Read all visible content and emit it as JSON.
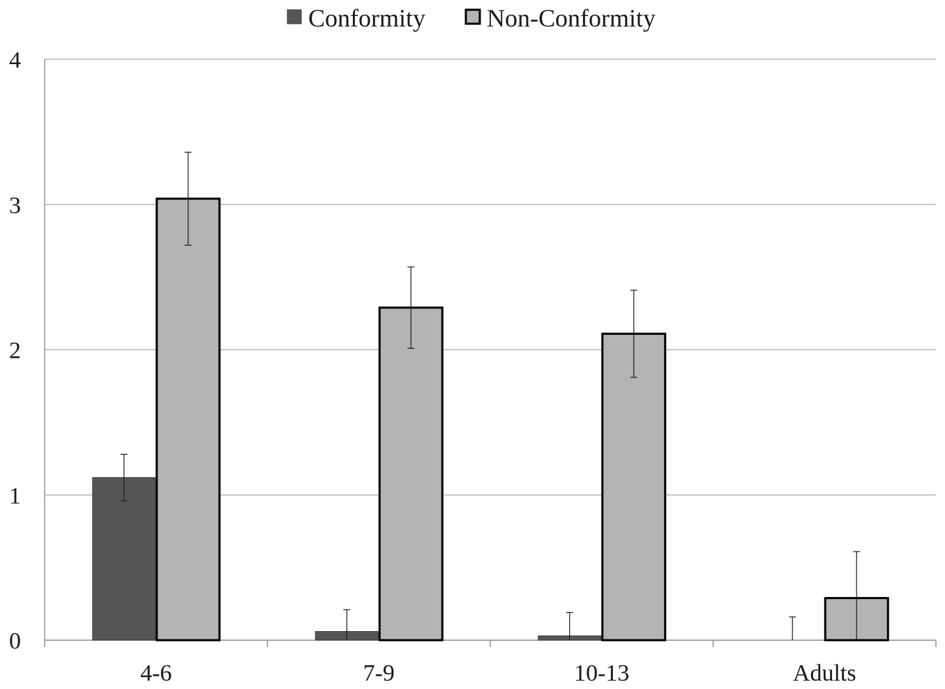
{
  "chart_data": {
    "type": "bar",
    "title": "",
    "xlabel": "",
    "ylabel": "",
    "categories": [
      "4-6",
      "7-9",
      "10-13",
      "Adults"
    ],
    "series": [
      {
        "name": "Conformity",
        "color": "#555555",
        "values": [
          1.12,
          0.06,
          0.03,
          0.0
        ],
        "error": [
          0.16,
          0.15,
          0.16,
          0.16
        ]
      },
      {
        "name": "Non-Conformity",
        "color": "#b4b4b4",
        "values": [
          3.04,
          2.29,
          2.11,
          0.29
        ],
        "error": [
          0.32,
          0.28,
          0.3,
          0.32
        ]
      }
    ],
    "ylim": [
      0,
      4
    ],
    "yticks": [
      "0",
      "1",
      "2",
      "3",
      "4"
    ],
    "grid": true,
    "legend": "top-center"
  }
}
